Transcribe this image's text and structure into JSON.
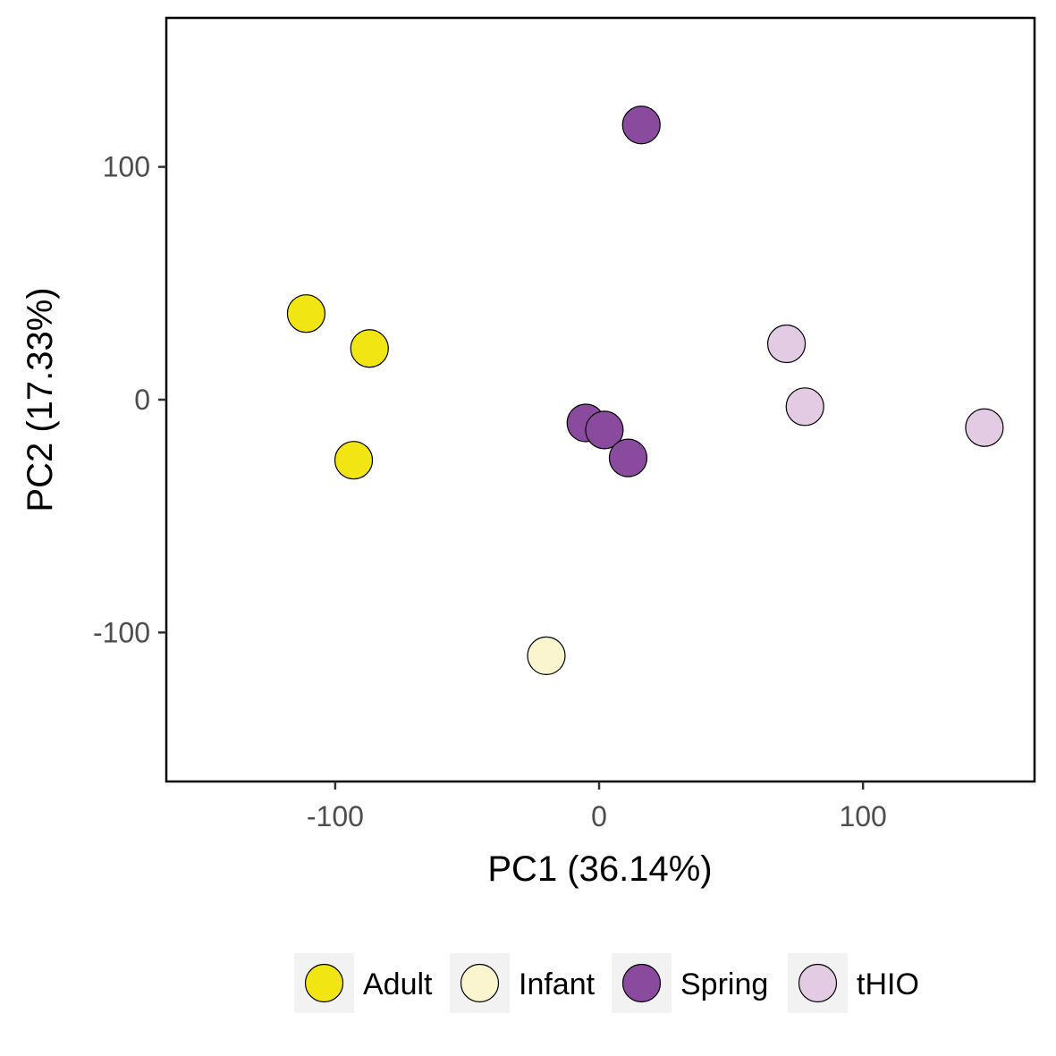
{
  "chart_data": {
    "type": "scatter",
    "title": "",
    "xlabel": "PC1 (36.14%)",
    "ylabel": "PC2 (17.33%)",
    "xlim": [
      -164,
      165
    ],
    "ylim": [
      -164,
      164
    ],
    "x_ticks": [
      -100,
      0,
      100
    ],
    "y_ticks": [
      -100,
      0,
      100
    ],
    "x_tick_labels": [
      "-100",
      "0",
      "100"
    ],
    "y_tick_labels": [
      "-100",
      "0",
      "100"
    ],
    "grid": false,
    "legend_position": "bottom",
    "series": [
      {
        "name": "Adult",
        "color": "#f2e514",
        "points": [
          [
            -111,
            37
          ],
          [
            -87,
            22
          ],
          [
            -93,
            -26
          ]
        ]
      },
      {
        "name": "Infant",
        "color": "#fbf5cf",
        "points": [
          [
            -20,
            -110
          ]
        ]
      },
      {
        "name": "Spring",
        "color": "#8a4a9e",
        "points": [
          [
            16,
            118
          ],
          [
            -5,
            -10
          ],
          [
            2,
            -13
          ],
          [
            11,
            -25
          ]
        ]
      },
      {
        "name": "tHIO",
        "color": "#e3cce3",
        "points": [
          [
            71,
            24
          ],
          [
            78,
            -3
          ],
          [
            146,
            -12
          ]
        ]
      }
    ]
  }
}
